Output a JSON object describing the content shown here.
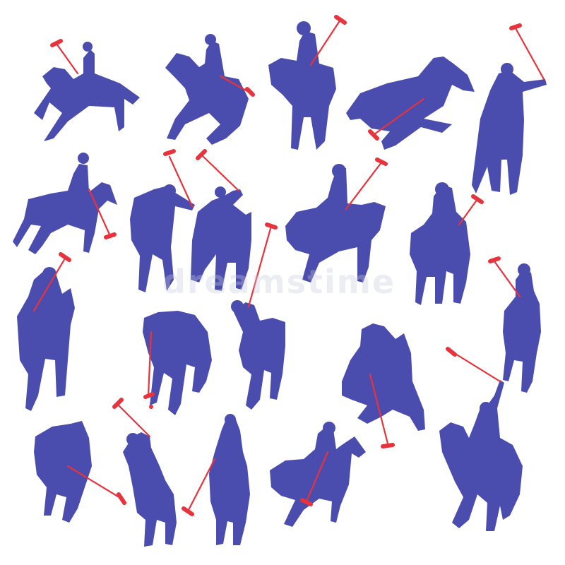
{
  "image": {
    "watermark": "dreamstime",
    "colors": {
      "silhouette": "#4a4dae",
      "mallet": "#e8323c",
      "background": "#ffffff"
    }
  }
}
